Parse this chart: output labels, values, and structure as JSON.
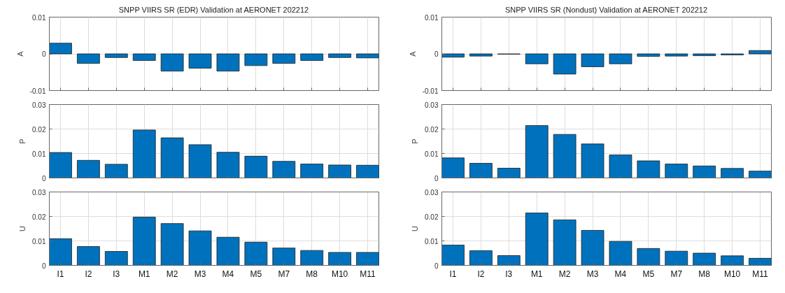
{
  "chart_data": [
    {
      "type": "bar",
      "title": "SNPP VIIRS SR (EDR) Validation at AERONET 202212",
      "ylabel": "A",
      "categories": [
        null,
        null,
        null,
        null,
        null,
        null,
        null,
        null,
        null,
        null,
        null,
        null
      ],
      "values": [
        0.0029,
        -0.0026,
        -0.001,
        -0.0018,
        -0.0047,
        -0.0039,
        -0.0047,
        -0.0032,
        -0.0026,
        -0.0018,
        -0.001,
        -0.0011
      ],
      "color": "#0072bd",
      "ylim": [
        -0.01,
        0.01
      ],
      "yticks": [
        -0.01,
        0,
        0.01
      ],
      "grid": true,
      "tick_labels": "y"
    },
    {
      "type": "bar",
      "title": "SNPP VIIRS SR (Nondust) Validation at AERONET 202212",
      "ylabel": "A",
      "categories": [
        null,
        null,
        null,
        null,
        null,
        null,
        null,
        null,
        null,
        null,
        null,
        null
      ],
      "values": [
        -0.0009,
        -0.0006,
        -0.0001,
        -0.0027,
        -0.0055,
        -0.0035,
        -0.0027,
        -0.0007,
        -0.0006,
        -0.0005,
        -0.0003,
        0.0009
      ],
      "color": "#0072bd",
      "ylim": [
        -0.01,
        0.01
      ],
      "yticks": [
        -0.01,
        0,
        0.01
      ],
      "grid": true,
      "tick_labels": "y"
    },
    {
      "type": "bar",
      "ylabel": "P",
      "categories": [
        null,
        null,
        null,
        null,
        null,
        null,
        null,
        null,
        null,
        null,
        null,
        null
      ],
      "values": [
        0.0104,
        0.0072,
        0.0056,
        0.0196,
        0.0164,
        0.0136,
        0.0105,
        0.0089,
        0.0068,
        0.0057,
        0.0053,
        0.0052
      ],
      "color": "#0072bd",
      "ylim": [
        0,
        0.03
      ],
      "yticks": [
        0,
        0.01,
        0.02,
        0.03
      ],
      "grid": true,
      "tick_labels": "y"
    },
    {
      "type": "bar",
      "ylabel": "P",
      "categories": [
        null,
        null,
        null,
        null,
        null,
        null,
        null,
        null,
        null,
        null,
        null,
        null
      ],
      "values": [
        0.0082,
        0.006,
        0.004,
        0.0214,
        0.0178,
        0.0139,
        0.0094,
        0.007,
        0.0057,
        0.0049,
        0.0039,
        0.0028
      ],
      "color": "#0072bd",
      "ylim": [
        0,
        0.03
      ],
      "yticks": [
        0,
        0.01,
        0.02,
        0.03
      ],
      "grid": true,
      "tick_labels": "y"
    },
    {
      "type": "bar",
      "ylabel": "U",
      "categories": [
        "I1",
        "I2",
        "I3",
        "M1",
        "M2",
        "M3",
        "M4",
        "M5",
        "M7",
        "M8",
        "M10",
        "M11"
      ],
      "values": [
        0.0109,
        0.0077,
        0.0057,
        0.0197,
        0.0171,
        0.0141,
        0.0115,
        0.0095,
        0.0071,
        0.0061,
        0.0053,
        0.0053
      ],
      "color": "#0072bd",
      "ylim": [
        0,
        0.03
      ],
      "yticks": [
        0,
        0.01,
        0.02,
        0.03
      ],
      "grid": true
    },
    {
      "type": "bar",
      "ylabel": "U",
      "categories": [
        "I1",
        "I2",
        "I3",
        "M1",
        "M2",
        "M3",
        "M4",
        "M5",
        "M7",
        "M8",
        "M10",
        "M11"
      ],
      "values": [
        0.0083,
        0.006,
        0.004,
        0.0214,
        0.0186,
        0.0143,
        0.0098,
        0.0069,
        0.0058,
        0.005,
        0.0039,
        0.0029
      ],
      "color": "#0072bd",
      "ylim": [
        0,
        0.03
      ],
      "yticks": [
        0,
        0.01,
        0.02,
        0.03
      ],
      "grid": true
    }
  ]
}
